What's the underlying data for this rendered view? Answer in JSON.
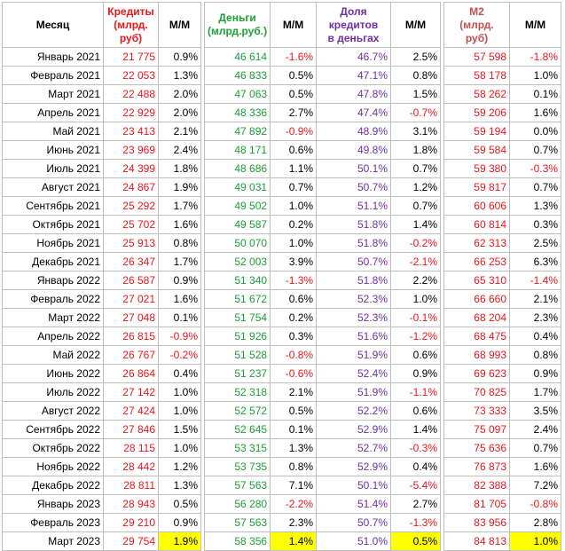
{
  "headers": {
    "month": "Месяц",
    "credits": "Кредиты\n(млрд. руб)",
    "mm1": "М/М",
    "money": "Деньги\n(млрд.руб.)",
    "mm2": "М/М",
    "share": "Доля кредитов\nв деньгах",
    "mm3": "М/М",
    "m2": "М2\n(млрд. руб)",
    "mm4": "М/М"
  },
  "colors": {
    "credits": "#e8171d",
    "money": "#1ba036",
    "share": "#7030a0",
    "m2": "#c0504d",
    "negative": "#e8171d",
    "highlight": "#ffff00"
  },
  "rows": [
    {
      "month": "Январь 2021",
      "credits": "21 775",
      "credits_mm": "0.9%",
      "money": "46 614",
      "money_mm": "-1.6%",
      "share": "46.7%",
      "share_mm": "2.5%",
      "m2": "57 598",
      "m2_mm": "-1.8%"
    },
    {
      "month": "Февраль 2021",
      "credits": "22 053",
      "credits_mm": "1.3%",
      "money": "46 833",
      "money_mm": "0.5%",
      "share": "47.1%",
      "share_mm": "0.8%",
      "m2": "58 178",
      "m2_mm": "1.0%"
    },
    {
      "month": "Март 2021",
      "credits": "22 488",
      "credits_mm": "2.0%",
      "money": "47 063",
      "money_mm": "0.5%",
      "share": "47.8%",
      "share_mm": "1.5%",
      "m2": "58 262",
      "m2_mm": "0.1%"
    },
    {
      "month": "Апрель 2021",
      "credits": "22 929",
      "credits_mm": "2.0%",
      "money": "48 336",
      "money_mm": "2.7%",
      "share": "47.4%",
      "share_mm": "-0.7%",
      "m2": "59 206",
      "m2_mm": "1.6%"
    },
    {
      "month": "Май 2021",
      "credits": "23 413",
      "credits_mm": "2.1%",
      "money": "47 892",
      "money_mm": "-0.9%",
      "share": "48.9%",
      "share_mm": "3.1%",
      "m2": "59 194",
      "m2_mm": "0.0%"
    },
    {
      "month": "Июнь 2021",
      "credits": "23 969",
      "credits_mm": "2.4%",
      "money": "48 171",
      "money_mm": "0.6%",
      "share": "49.8%",
      "share_mm": "1.8%",
      "m2": "59 584",
      "m2_mm": "0.7%"
    },
    {
      "month": "Июль 2021",
      "credits": "24 399",
      "credits_mm": "1.8%",
      "money": "48 686",
      "money_mm": "1.1%",
      "share": "50.1%",
      "share_mm": "0.7%",
      "m2": "59 380",
      "m2_mm": "-0.3%"
    },
    {
      "month": "Август 2021",
      "credits": "24 867",
      "credits_mm": "1.9%",
      "money": "49 031",
      "money_mm": "0.7%",
      "share": "50.7%",
      "share_mm": "1.2%",
      "m2": "59 817",
      "m2_mm": "0.7%"
    },
    {
      "month": "Сентябрь 2021",
      "credits": "25 292",
      "credits_mm": "1.7%",
      "money": "49 502",
      "money_mm": "1.0%",
      "share": "51.1%",
      "share_mm": "0.7%",
      "m2": "60 606",
      "m2_mm": "1.3%"
    },
    {
      "month": "Октябрь 2021",
      "credits": "25 702",
      "credits_mm": "1.6%",
      "money": "49 587",
      "money_mm": "0.2%",
      "share": "51.8%",
      "share_mm": "1.4%",
      "m2": "60 814",
      "m2_mm": "0.3%"
    },
    {
      "month": "Ноябрь 2021",
      "credits": "25 913",
      "credits_mm": "0.8%",
      "money": "50 070",
      "money_mm": "1.0%",
      "share": "51.8%",
      "share_mm": "-0.2%",
      "m2": "62 313",
      "m2_mm": "2.5%"
    },
    {
      "month": "Декабрь 2021",
      "credits": "26 347",
      "credits_mm": "1.7%",
      "money": "52 003",
      "money_mm": "3.9%",
      "share": "50.7%",
      "share_mm": "-2.1%",
      "m2": "66 253",
      "m2_mm": "6.3%"
    },
    {
      "month": "Январь 2022",
      "credits": "26 587",
      "credits_mm": "0.9%",
      "money": "51 340",
      "money_mm": "-1.3%",
      "share": "51.8%",
      "share_mm": "2.2%",
      "m2": "65 310",
      "m2_mm": "-1.4%"
    },
    {
      "month": "Февраль 2022",
      "credits": "27 021",
      "credits_mm": "1.6%",
      "money": "51 672",
      "money_mm": "0.6%",
      "share": "52.3%",
      "share_mm": "1.0%",
      "m2": "66 660",
      "m2_mm": "2.1%"
    },
    {
      "month": "Март 2022",
      "credits": "27 048",
      "credits_mm": "0.1%",
      "money": "51 754",
      "money_mm": "0.2%",
      "share": "52.3%",
      "share_mm": "-0.1%",
      "m2": "68 204",
      "m2_mm": "2.3%"
    },
    {
      "month": "Апрель 2022",
      "credits": "26 815",
      "credits_mm": "-0.9%",
      "money": "51 926",
      "money_mm": "0.3%",
      "share": "51.6%",
      "share_mm": "-1.2%",
      "m2": "68 475",
      "m2_mm": "0.4%"
    },
    {
      "month": "Май 2022",
      "credits": "26 767",
      "credits_mm": "-0.2%",
      "money": "51 528",
      "money_mm": "-0.8%",
      "share": "51.9%",
      "share_mm": "0.6%",
      "m2": "68 993",
      "m2_mm": "0.8%"
    },
    {
      "month": "Июнь 2022",
      "credits": "26 864",
      "credits_mm": "0.4%",
      "money": "51 237",
      "money_mm": "-0.6%",
      "share": "52.4%",
      "share_mm": "0.9%",
      "m2": "69 623",
      "m2_mm": "0.9%"
    },
    {
      "month": "Июль 2022",
      "credits": "27 142",
      "credits_mm": "1.0%",
      "money": "52 318",
      "money_mm": "2.1%",
      "share": "51.9%",
      "share_mm": "-1.1%",
      "m2": "70 825",
      "m2_mm": "1.7%"
    },
    {
      "month": "Август 2022",
      "credits": "27 424",
      "credits_mm": "1.0%",
      "money": "52 572",
      "money_mm": "0.5%",
      "share": "52.2%",
      "share_mm": "0.6%",
      "m2": "73 333",
      "m2_mm": "3.5%"
    },
    {
      "month": "Сентябрь 2022",
      "credits": "27 846",
      "credits_mm": "1.5%",
      "money": "52 645",
      "money_mm": "0.1%",
      "share": "52.9%",
      "share_mm": "1.4%",
      "m2": "75 097",
      "m2_mm": "2.4%"
    },
    {
      "month": "Октябрь 2022",
      "credits": "28 115",
      "credits_mm": "1.0%",
      "money": "53 315",
      "money_mm": "1.3%",
      "share": "52.7%",
      "share_mm": "-0.3%",
      "m2": "75 636",
      "m2_mm": "0.7%"
    },
    {
      "month": "Ноябрь 2022",
      "credits": "28 442",
      "credits_mm": "1.2%",
      "money": "53 735",
      "money_mm": "0.8%",
      "share": "52.9%",
      "share_mm": "0.4%",
      "m2": "76 873",
      "m2_mm": "1.6%"
    },
    {
      "month": "Декабрь 2022",
      "credits": "28 811",
      "credits_mm": "1.3%",
      "money": "57 563",
      "money_mm": "7.1%",
      "share": "50.1%",
      "share_mm": "-5.4%",
      "m2": "82 388",
      "m2_mm": "7.2%"
    },
    {
      "month": "Январь 2023",
      "credits": "28 943",
      "credits_mm": "0.5%",
      "money": "56 280",
      "money_mm": "-2.2%",
      "share": "51.4%",
      "share_mm": "2.7%",
      "m2": "81 705",
      "m2_mm": "-0.8%"
    },
    {
      "month": "Февраль 2023",
      "credits": "29 210",
      "credits_mm": "0.9%",
      "money": "57 563",
      "money_mm": "2.3%",
      "share": "50.7%",
      "share_mm": "-1.3%",
      "m2": "83 956",
      "m2_mm": "2.8%"
    },
    {
      "month": "Март 2023",
      "credits": "29 754",
      "credits_mm": "1.9%",
      "money": "58 356",
      "money_mm": "1.4%",
      "share": "51.0%",
      "share_mm": "0.5%",
      "m2": "84 813",
      "m2_mm": "1.0%",
      "highlight": true
    }
  ]
}
